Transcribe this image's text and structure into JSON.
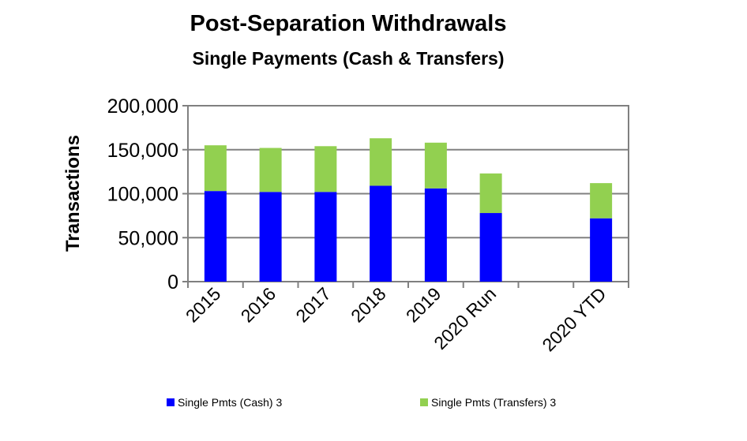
{
  "chart_data": {
    "type": "bar",
    "stacked": true,
    "title": "Post-Separation Withdrawals",
    "subtitle": "Single Payments (Cash & Transfers)",
    "xlabel": "",
    "ylabel": "Transactions",
    "ylim": [
      0,
      200000
    ],
    "yticks": [
      0,
      50000,
      100000,
      150000,
      200000
    ],
    "ytick_labels": [
      "0",
      "50,000",
      "100,000",
      "150,000",
      "200,000"
    ],
    "grid": true,
    "legend_position": "bottom",
    "categories": [
      "2015",
      "2016",
      "2017",
      "2018",
      "2019",
      "2020 Run",
      "",
      "2020 YTD"
    ],
    "series": [
      {
        "name": "Single Pmts (Cash) 3",
        "color": "#0000ff",
        "values": [
          103000,
          102000,
          102000,
          109000,
          106000,
          78000,
          null,
          72000
        ]
      },
      {
        "name": "Single Pmts (Transfers) 3",
        "color": "#92d050",
        "values": [
          52000,
          50000,
          52000,
          54000,
          52000,
          45000,
          null,
          40000
        ]
      }
    ]
  }
}
